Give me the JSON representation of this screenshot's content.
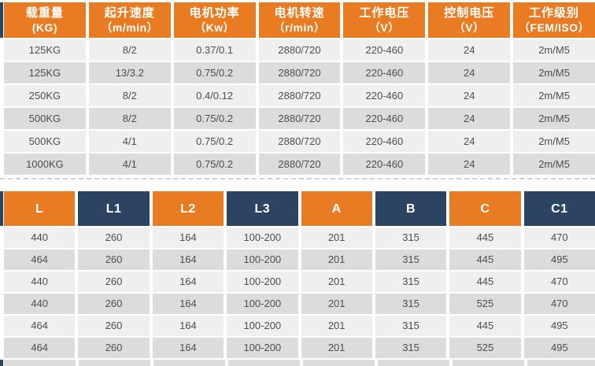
{
  "colors": {
    "orange": "#e97c23",
    "navy": "#2a4462",
    "row_light": "#efefef",
    "row_dark": "#dcdcdc",
    "cell_text": "#4d4d4d",
    "dash": "#d0d0d0",
    "header_text": "#ffffff"
  },
  "spec_table": {
    "headers": [
      {
        "line1": "载重量",
        "line2": "(KG)"
      },
      {
        "line1": "起升速度",
        "line2": "（m/min）"
      },
      {
        "line1": "电机功率",
        "line2": "（Kw）"
      },
      {
        "line1": "电机转速",
        "line2": "（r/min）"
      },
      {
        "line1": "工作电压",
        "line2": "（V）"
      },
      {
        "line1": "控制电压",
        "line2": "（V）"
      },
      {
        "line1": "工作级别",
        "line2": "（FEM/ISO）"
      }
    ],
    "rows": [
      [
        "125KG",
        "8/2",
        "0.37/0.1",
        "2880/720",
        "220-460",
        "24",
        "2m/M5"
      ],
      [
        "125KG",
        "13/3.2",
        "0.75/0.2",
        "2880/720",
        "220-460",
        "24",
        "2m/M5"
      ],
      [
        "250KG",
        "8/2",
        "0.4/0.12",
        "2880/720",
        "220-460",
        "24",
        "2m/M5"
      ],
      [
        "500KG",
        "8/2",
        "0.75/0.2",
        "2880/720",
        "220-460",
        "24",
        "2m/M5"
      ],
      [
        "500KG",
        "4/1",
        "0.75/0.2",
        "2880/720",
        "220-460",
        "24",
        "2m/M5"
      ],
      [
        "1000KG",
        "4/1",
        "0.75/0.2",
        "2880/720",
        "220-460",
        "24",
        "2m/M5"
      ]
    ]
  },
  "dim_table": {
    "headers": [
      "L",
      "L1",
      "L2",
      "L3",
      "A",
      "B",
      "C",
      "C1"
    ],
    "rows": [
      [
        "440",
        "260",
        "164",
        "100-200",
        "201",
        "315",
        "445",
        "470"
      ],
      [
        "464",
        "260",
        "164",
        "100-200",
        "201",
        "315",
        "445",
        "495"
      ],
      [
        "440",
        "260",
        "164",
        "100-200",
        "201",
        "315",
        "445",
        "470"
      ],
      [
        "440",
        "260",
        "164",
        "100-200",
        "201",
        "315",
        "525",
        "470"
      ],
      [
        "464",
        "260",
        "164",
        "100-200",
        "201",
        "315",
        "445",
        "495"
      ],
      [
        "464",
        "260",
        "164",
        "100-200",
        "201",
        "315",
        "525",
        "495"
      ]
    ]
  }
}
